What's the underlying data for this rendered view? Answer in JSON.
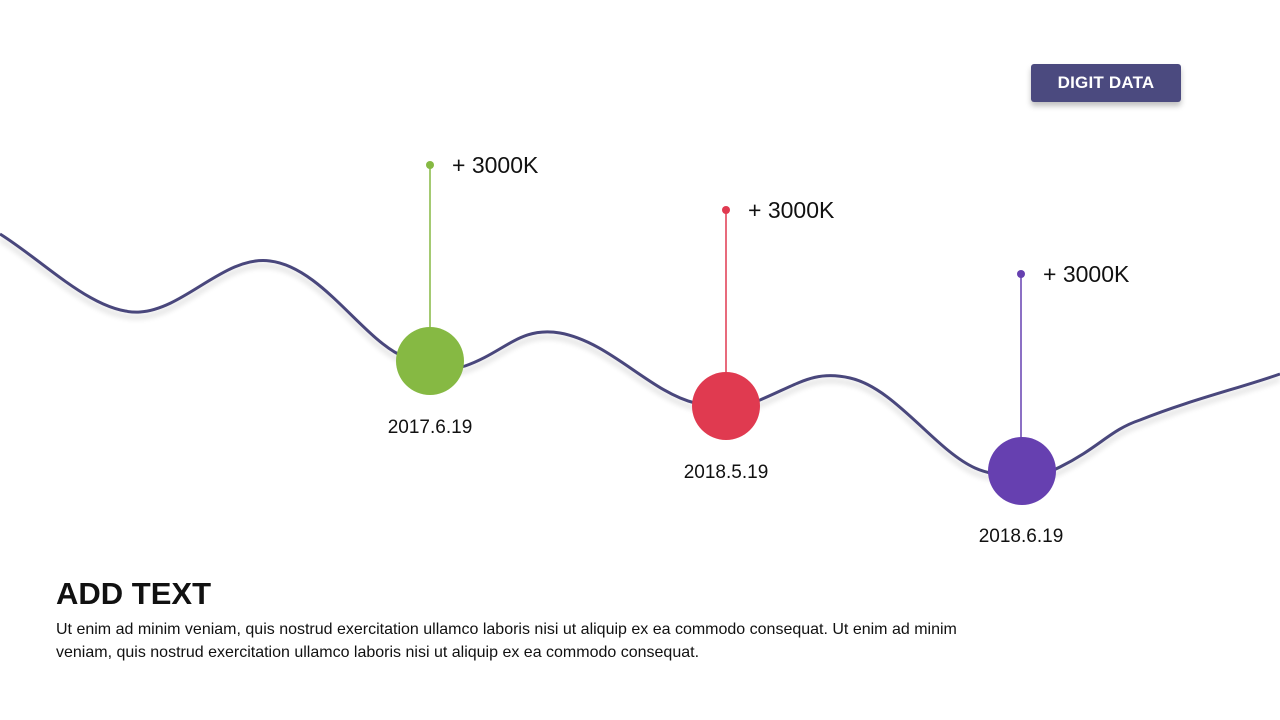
{
  "tag": {
    "label": "DIGIT DATA"
  },
  "colors": {
    "curve": "#4a467c",
    "tag_bg": "#4b4a7f",
    "milestone_1": "#86b943",
    "milestone_2": "#e03a50",
    "milestone_3": "#6640b0"
  },
  "milestones": [
    {
      "value": "+ 3000K",
      "date": "2017.6.19",
      "color": "#86b943"
    },
    {
      "value": "+ 3000K",
      "date": "2018.5.19",
      "color": "#e03a50"
    },
    {
      "value": "+ 3000K",
      "date": "2018.6.19",
      "color": "#6640b0"
    }
  ],
  "text": {
    "heading": "ADD TEXT",
    "body": "Ut enim ad minim veniam, quis nostrud exercitation ullamco laboris nisi ut aliquip ex ea commodo consequat. Ut enim ad minim veniam, quis nostrud exercitation ullamco laboris nisi ut aliquip ex ea commodo consequat."
  }
}
